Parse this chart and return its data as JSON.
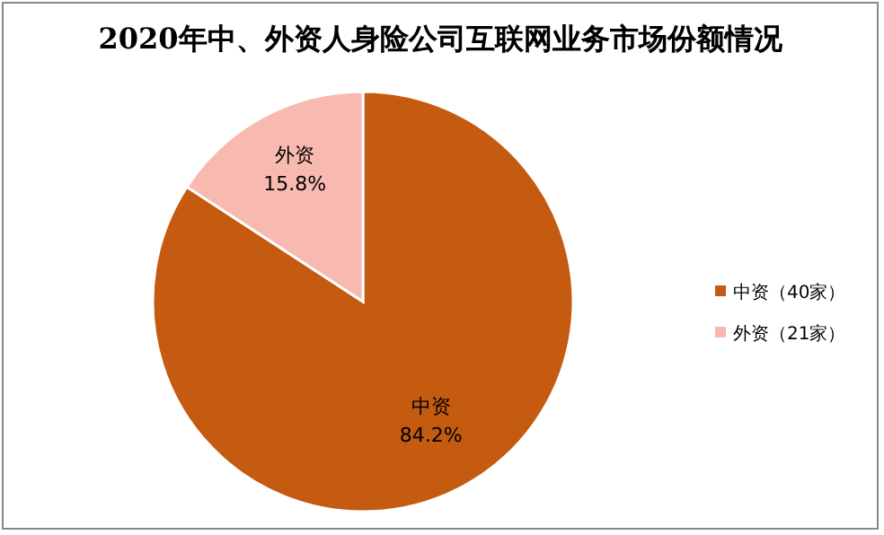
{
  "chart_data": {
    "type": "pie",
    "title": "2020年中、外资人身险公司互联网业务市场份额情况",
    "categories": [
      "中资（40家）",
      "外资（21家）"
    ],
    "values": [
      84.2,
      15.8
    ],
    "colors": [
      "#c55a11",
      "#f8b9b0"
    ],
    "value_labels": [
      "中资\n84.2%",
      "外资\n15.8%"
    ],
    "legend": "right"
  }
}
